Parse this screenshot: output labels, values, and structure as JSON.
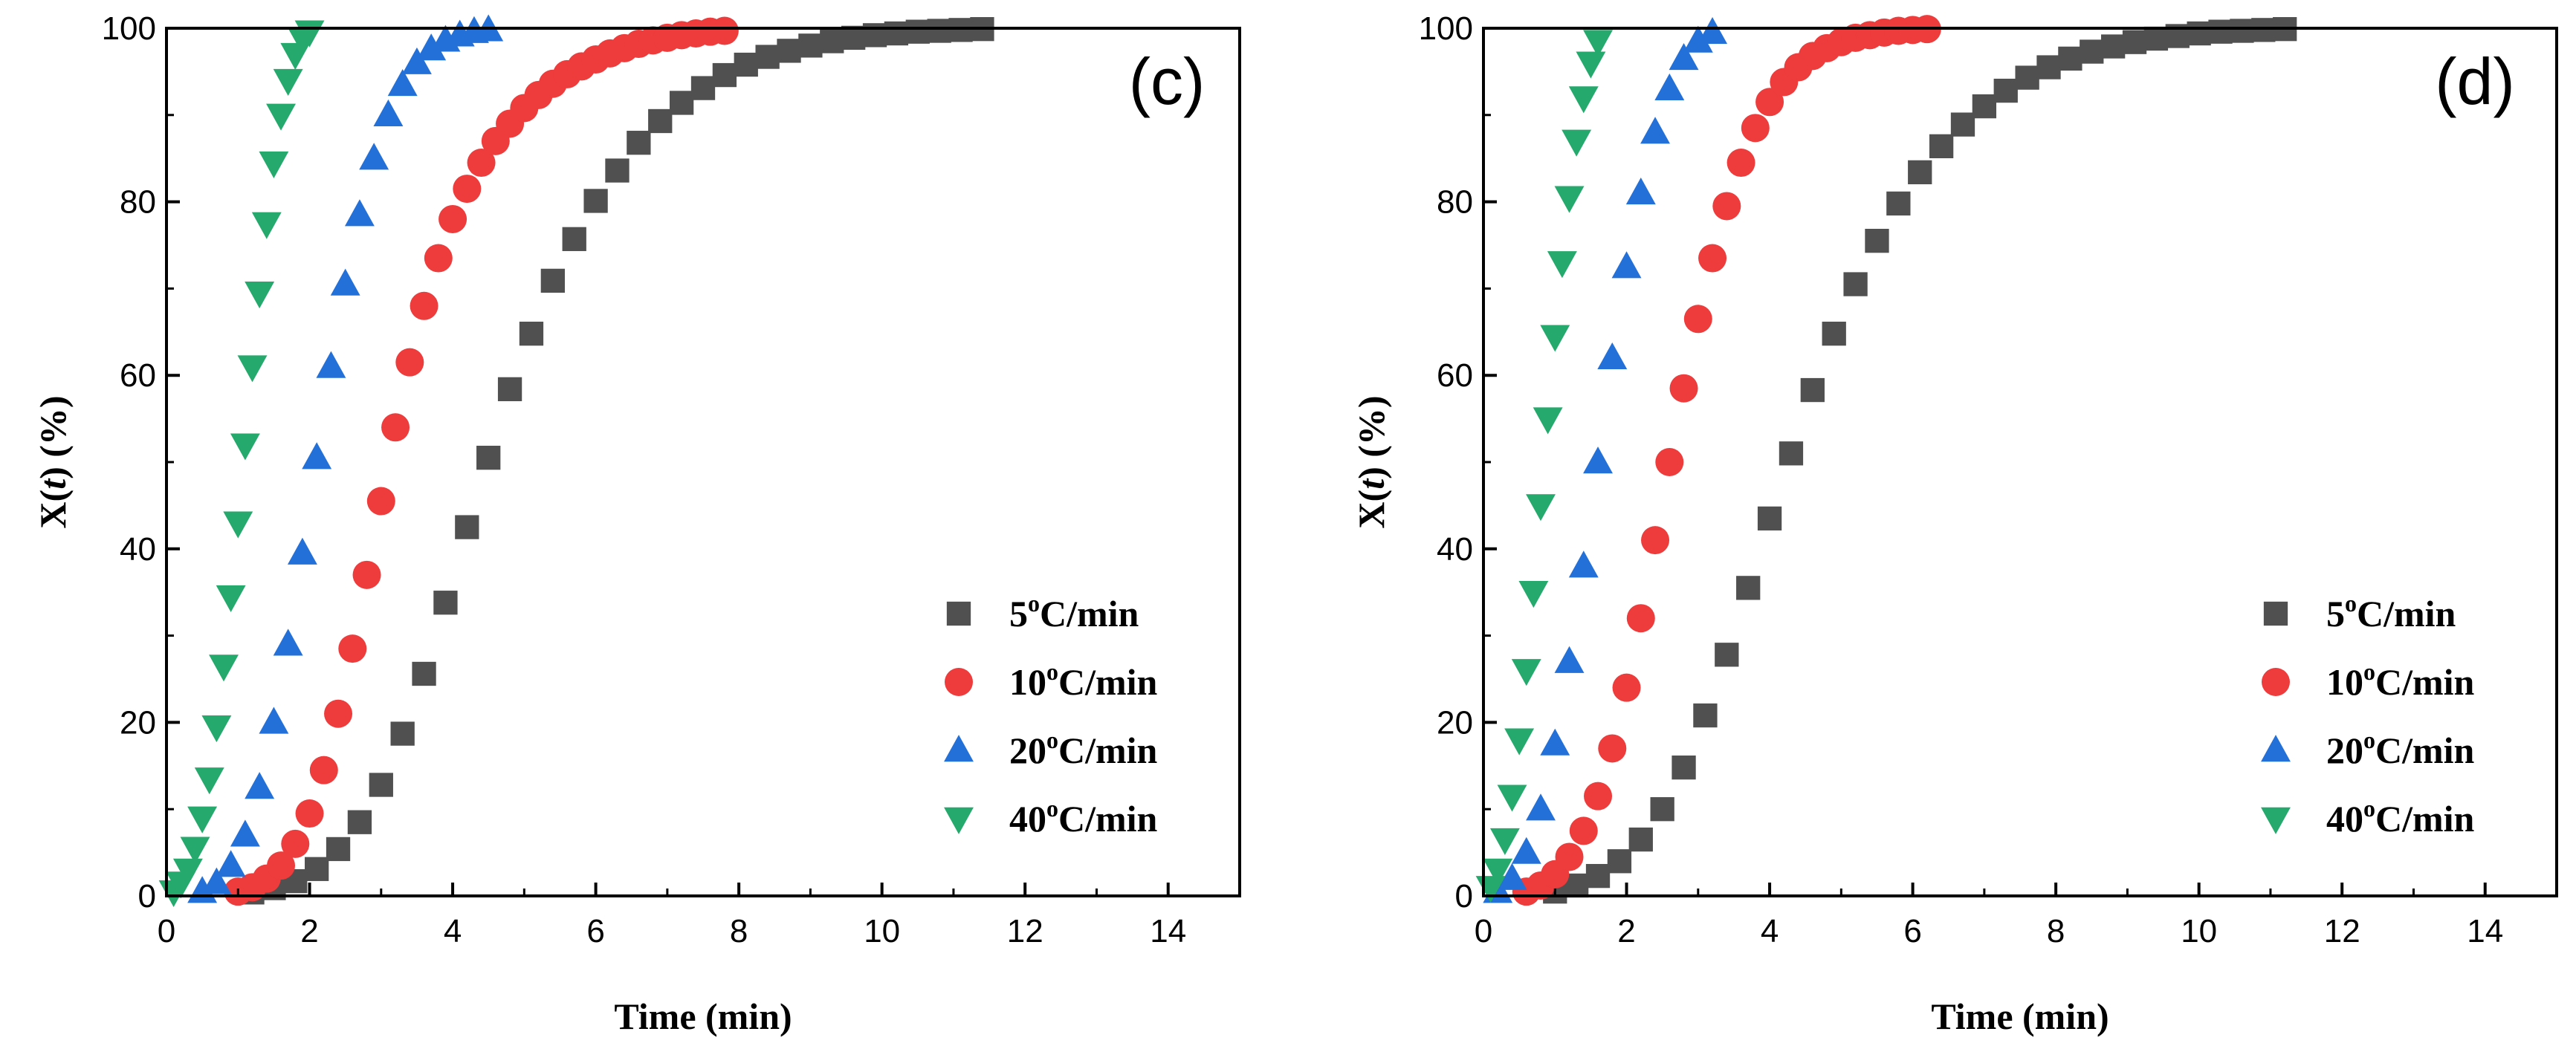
{
  "series_colors": {
    "5C": "#505050",
    "10C": "#EE3B3B",
    "20C": "#2370D9",
    "40C": "#26A96C"
  },
  "chart_data": [
    {
      "type": "scatter",
      "panel_label": "(c)",
      "xlabel": "Time (min)",
      "ylabel_main": "X(",
      "ylabel_var": "t",
      "ylabel_rest": ") (%)",
      "xlim": [
        0,
        15
      ],
      "ylim": [
        0,
        100
      ],
      "xticks": [
        "0",
        "2",
        "4",
        "6",
        "8",
        "10",
        "12",
        "14"
      ],
      "yticks": [
        "0",
        "20",
        "40",
        "60",
        "80",
        "100"
      ],
      "legend_position": "bottom-right",
      "series": [
        {
          "key": "5C",
          "name_num": "5",
          "name_sup": "o",
          "name_rest": "C/min",
          "marker": "square",
          "x": [
            1.2,
            1.5,
            1.8,
            2.1,
            2.4,
            2.7,
            3.0,
            3.3,
            3.6,
            3.9,
            4.2,
            4.5,
            4.8,
            5.1,
            5.4,
            5.7,
            6.0,
            6.3,
            6.6,
            6.9,
            7.2,
            7.5,
            7.8,
            8.1,
            8.4,
            8.7,
            9.0,
            9.3,
            9.6,
            9.9,
            10.2,
            10.5,
            10.8,
            11.1,
            11.4
          ],
          "y": [
            0.4,
            0.9,
            1.7,
            3.1,
            5.4,
            8.5,
            12.8,
            18.7,
            25.6,
            33.8,
            42.5,
            50.5,
            58.4,
            64.8,
            70.9,
            75.7,
            80.1,
            83.6,
            86.8,
            89.3,
            91.4,
            93.1,
            94.6,
            95.8,
            96.7,
            97.4,
            98.0,
            98.5,
            98.9,
            99.2,
            99.4,
            99.6,
            99.7,
            99.8,
            99.9
          ]
        },
        {
          "key": "10C",
          "name_num": "10",
          "name_sup": "o",
          "name_rest": "C/min",
          "marker": "circle",
          "x": [
            1.0,
            1.2,
            1.4,
            1.6,
            1.8,
            2.0,
            2.2,
            2.4,
            2.6,
            2.8,
            3.0,
            3.2,
            3.4,
            3.6,
            3.8,
            4.0,
            4.2,
            4.4,
            4.6,
            4.8,
            5.0,
            5.2,
            5.4,
            5.6,
            5.8,
            6.0,
            6.2,
            6.4,
            6.6,
            6.8,
            7.0,
            7.2,
            7.4,
            7.6,
            7.8
          ],
          "y": [
            0.5,
            1.0,
            2.0,
            3.5,
            6.0,
            9.5,
            14.5,
            21.0,
            28.5,
            37.0,
            45.5,
            54.0,
            61.5,
            68.0,
            73.5,
            78.0,
            81.5,
            84.5,
            87.0,
            89.0,
            90.8,
            92.3,
            93.6,
            94.7,
            95.6,
            96.4,
            97.1,
            97.7,
            98.2,
            98.6,
            98.9,
            99.2,
            99.4,
            99.6,
            99.7
          ]
        },
        {
          "key": "20C",
          "name_num": "20",
          "name_sup": "o",
          "name_rest": "C/min",
          "marker": "triangle-up",
          "x": [
            0.5,
            0.7,
            0.9,
            1.1,
            1.3,
            1.5,
            1.7,
            1.9,
            2.1,
            2.3,
            2.5,
            2.7,
            2.9,
            3.1,
            3.3,
            3.5,
            3.7,
            3.9,
            4.1,
            4.3,
            4.5
          ],
          "y": [
            0.5,
            1.5,
            3.5,
            7.0,
            12.5,
            20.0,
            29.0,
            39.5,
            50.5,
            61.0,
            70.5,
            78.5,
            85.0,
            90.0,
            93.5,
            96.0,
            97.6,
            98.6,
            99.2,
            99.6,
            99.8
          ]
        },
        {
          "key": "40C",
          "name_num": "40",
          "name_sup": "o",
          "name_rest": "C/min",
          "marker": "triangle-down",
          "x": [
            0.1,
            0.2,
            0.3,
            0.4,
            0.5,
            0.6,
            0.7,
            0.8,
            0.9,
            1.0,
            1.1,
            1.2,
            1.3,
            1.4,
            1.5,
            1.6,
            1.7,
            1.8,
            1.9,
            2.0
          ],
          "y": [
            0.5,
            1.5,
            3.0,
            5.5,
            9.0,
            13.5,
            19.5,
            26.5,
            34.5,
            43.0,
            52.0,
            61.0,
            69.5,
            77.5,
            84.5,
            90.0,
            94.0,
            97.0,
            98.8,
            99.6
          ]
        }
      ]
    },
    {
      "type": "scatter",
      "panel_label": "(d)",
      "xlabel": "Time (min)",
      "ylabel_main": "X(",
      "ylabel_var": "t",
      "ylabel_rest": ") (%)",
      "xlim": [
        0,
        15
      ],
      "ylim": [
        0,
        100
      ],
      "xticks": [
        "0",
        "2",
        "4",
        "6",
        "8",
        "10",
        "12",
        "14"
      ],
      "yticks": [
        "0",
        "20",
        "40",
        "60",
        "80",
        "100"
      ],
      "legend_position": "bottom-right",
      "series": [
        {
          "key": "5C",
          "name_num": "5",
          "name_sup": "o",
          "name_rest": "C/min",
          "marker": "square",
          "x": [
            1.0,
            1.3,
            1.6,
            1.9,
            2.2,
            2.5,
            2.8,
            3.1,
            3.4,
            3.7,
            4.0,
            4.3,
            4.6,
            4.9,
            5.2,
            5.5,
            5.8,
            6.1,
            6.4,
            6.7,
            7.0,
            7.3,
            7.6,
            7.9,
            8.2,
            8.5,
            8.8,
            9.1,
            9.4,
            9.7,
            10.0,
            10.3,
            10.6,
            10.9,
            11.2
          ],
          "y": [
            0.5,
            1.2,
            2.3,
            4.0,
            6.5,
            10.0,
            14.8,
            20.8,
            27.8,
            35.5,
            43.5,
            51.0,
            58.3,
            64.8,
            70.5,
            75.5,
            79.8,
            83.4,
            86.4,
            88.9,
            91.0,
            92.8,
            94.3,
            95.5,
            96.5,
            97.3,
            97.9,
            98.4,
            98.8,
            99.1,
            99.4,
            99.6,
            99.7,
            99.8,
            99.9
          ]
        },
        {
          "key": "10C",
          "name_num": "10",
          "name_sup": "o",
          "name_rest": "C/min",
          "marker": "circle",
          "x": [
            0.6,
            0.8,
            1.0,
            1.2,
            1.4,
            1.6,
            1.8,
            2.0,
            2.2,
            2.4,
            2.6,
            2.8,
            3.0,
            3.2,
            3.4,
            3.6,
            3.8,
            4.0,
            4.2,
            4.4,
            4.6,
            4.8,
            5.0,
            5.2,
            5.4,
            5.6,
            5.8,
            6.0,
            6.2
          ],
          "y": [
            0.5,
            1.2,
            2.5,
            4.5,
            7.5,
            11.5,
            17.0,
            24.0,
            32.0,
            41.0,
            50.0,
            58.5,
            66.5,
            73.5,
            79.5,
            84.5,
            88.5,
            91.5,
            93.8,
            95.5,
            96.8,
            97.7,
            98.4,
            98.9,
            99.2,
            99.5,
            99.7,
            99.8,
            99.9
          ]
        },
        {
          "key": "20C",
          "name_num": "20",
          "name_sup": "o",
          "name_rest": "C/min",
          "marker": "triangle-up",
          "x": [
            0.2,
            0.4,
            0.6,
            0.8,
            1.0,
            1.2,
            1.4,
            1.6,
            1.8,
            2.0,
            2.2,
            2.4,
            2.6,
            2.8,
            3.0,
            3.2
          ],
          "y": [
            0.5,
            2.0,
            5.0,
            10.0,
            17.5,
            27.0,
            38.0,
            50.0,
            62.0,
            72.5,
            81.0,
            88.0,
            93.0,
            96.5,
            98.5,
            99.5
          ]
        },
        {
          "key": "40C",
          "name_num": "40",
          "name_sup": "o",
          "name_rest": "C/min",
          "marker": "triangle-down",
          "x": [
            0.1,
            0.2,
            0.3,
            0.4,
            0.5,
            0.6,
            0.7,
            0.8,
            0.9,
            1.0,
            1.1,
            1.2,
            1.3,
            1.4,
            1.5,
            1.6
          ],
          "y": [
            1.0,
            3.0,
            6.5,
            11.5,
            18.0,
            26.0,
            35.0,
            45.0,
            55.0,
            64.5,
            73.0,
            80.5,
            87.0,
            92.0,
            96.0,
            98.5
          ]
        }
      ]
    }
  ]
}
